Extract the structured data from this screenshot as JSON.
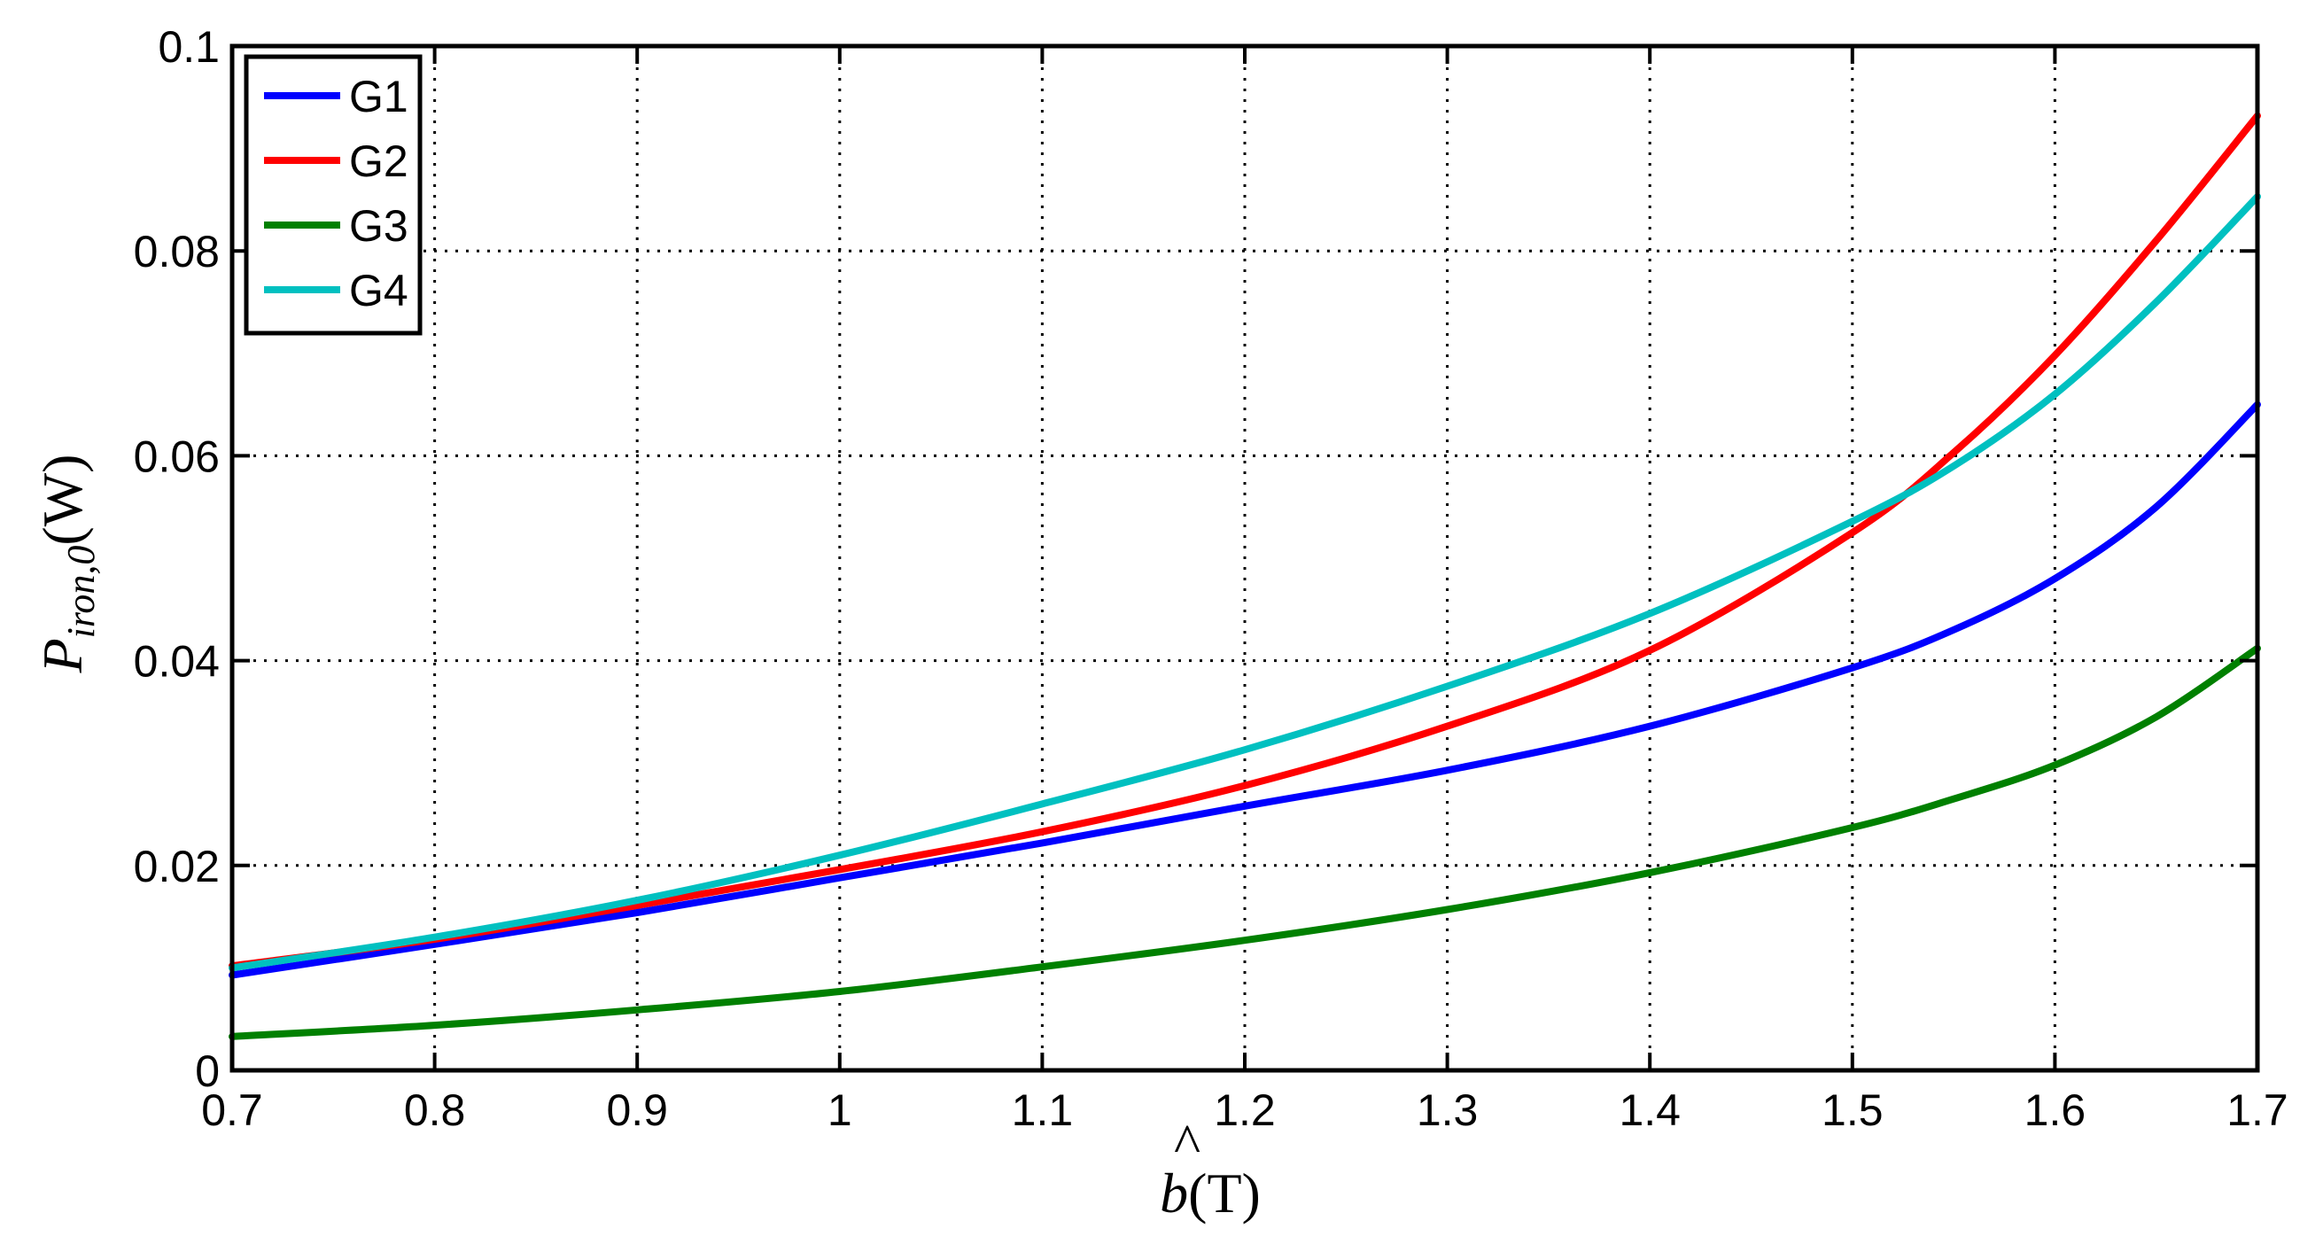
{
  "chart_data": {
    "type": "line",
    "title": "",
    "xlabel": {
      "var": "b",
      "hat": "^",
      "unit": "(T)"
    },
    "ylabel": {
      "var": "P",
      "subscript": "iron,0",
      "unit": "(W)"
    },
    "xlim": [
      0.7,
      1.7
    ],
    "ylim": [
      0,
      0.1
    ],
    "xticks": [
      0.7,
      0.8,
      0.9,
      1,
      1.1,
      1.2,
      1.3,
      1.4,
      1.5,
      1.6,
      1.7
    ],
    "xtick_labels": [
      "0.7",
      "0.8",
      "0.9",
      "1",
      "1.1",
      "1.2",
      "1.3",
      "1.4",
      "1.5",
      "1.6",
      "1.7"
    ],
    "yticks": [
      0,
      0.02,
      0.04,
      0.06,
      0.08,
      0.1
    ],
    "ytick_labels": [
      "0",
      "0.02",
      "0.04",
      "0.06",
      "0.08",
      "0.1"
    ],
    "grid": true,
    "legend_position": "top-left",
    "x": [
      0.7,
      0.8,
      0.9,
      1.0,
      1.1,
      1.2,
      1.3,
      1.4,
      1.5,
      1.55,
      1.6,
      1.65,
      1.7
    ],
    "series": [
      {
        "name": "G1",
        "color": "#0000ff",
        "values": [
          0.0093,
          0.0123,
          0.0154,
          0.0188,
          0.0222,
          0.0258,
          0.0293,
          0.0336,
          0.0393,
          0.043,
          0.048,
          0.055,
          0.065
        ]
      },
      {
        "name": "G2",
        "color": "#ff0000",
        "values": [
          0.0102,
          0.0128,
          0.0161,
          0.0196,
          0.0233,
          0.0278,
          0.0336,
          0.041,
          0.0525,
          0.0603,
          0.0698,
          0.081,
          0.0932
        ]
      },
      {
        "name": "G3",
        "color": "#008000",
        "values": [
          0.0033,
          0.0044,
          0.0059,
          0.0077,
          0.0101,
          0.0127,
          0.0157,
          0.0193,
          0.0237,
          0.0265,
          0.0298,
          0.0345,
          0.0412
        ]
      },
      {
        "name": "G4",
        "color": "#00c0c0",
        "values": [
          0.01,
          0.013,
          0.0166,
          0.021,
          0.026,
          0.0313,
          0.0375,
          0.0446,
          0.0536,
          0.059,
          0.066,
          0.075,
          0.0853
        ]
      }
    ]
  }
}
